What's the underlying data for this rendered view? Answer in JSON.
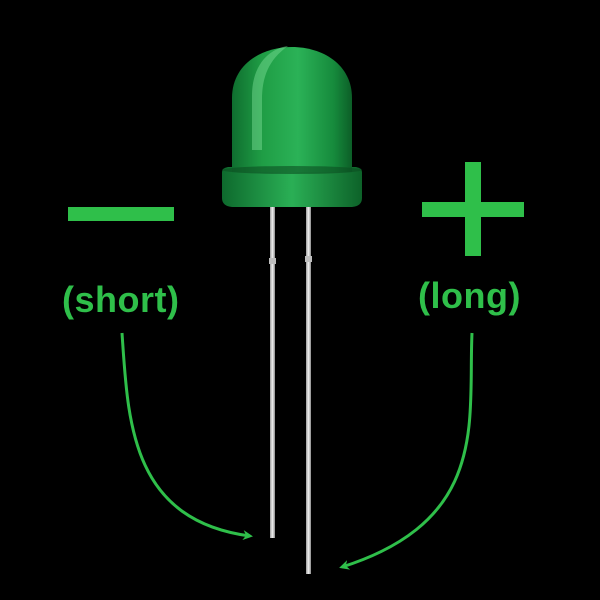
{
  "colors": {
    "background": "#000000",
    "accent": "#2fbf4a",
    "led_body": "#1fa24a",
    "led_body_dark": "#0f6e2f",
    "led_highlight": "#7fe09a",
    "lead": "#d6d6d6"
  },
  "labels": {
    "short": "(short)",
    "long": "(long)"
  },
  "symbols": {
    "negative": "minus-symbol",
    "positive": "plus-symbol"
  },
  "components": {
    "led": "green-led",
    "cathode": "short-lead",
    "anode": "long-lead"
  }
}
